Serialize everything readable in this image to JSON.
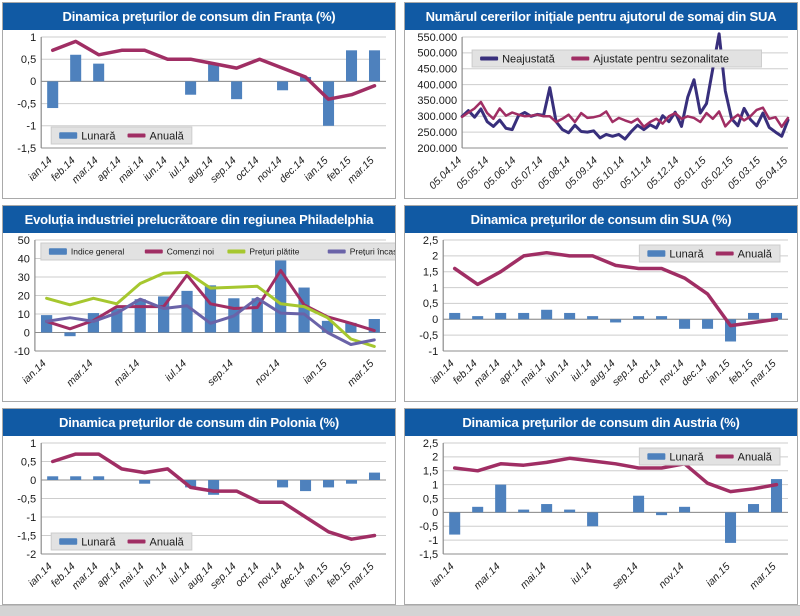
{
  "colors": {
    "title_bar": "#115aa4",
    "bar_blue": "#4e81bd",
    "magenta": "#a02e64",
    "navy": "#382f7c",
    "green": "#a6c72f",
    "slate_purple": "#6a63a8",
    "legend_bg": "#e2e2e2",
    "legend_border": "#cccccc",
    "gridline": "#cdcdcd",
    "axis": "#8c8c8c",
    "tick_text": "#1a1a1a"
  },
  "chart_data": [
    {
      "type": "bar",
      "title": "Dinamica prețurilor de consum din Franța (%)",
      "legend_pos": "bottom-left",
      "x_label_step": 1,
      "y_axis": {
        "min": -1.5,
        "max": 1,
        "ticks": [
          {
            "v": 1,
            "label": "1"
          },
          {
            "v": 0.5,
            "label": "0,5"
          },
          {
            "v": 0,
            "label": "0"
          },
          {
            "v": -0.5,
            "label": "-0,5"
          },
          {
            "v": -1,
            "label": "-1"
          },
          {
            "v": -1.5,
            "label": "-1,5"
          }
        ]
      },
      "categories": [
        "ian.14",
        "feb.14",
        "mar.14",
        "apr.14",
        "mai.14",
        "iun.14",
        "iul.14",
        "aug.14",
        "sep.14",
        "oct.14",
        "nov.14",
        "dec.14",
        "ian.15",
        "feb.15",
        "mar.15"
      ],
      "series": [
        {
          "name": "Lunară",
          "type": "bar",
          "color": "#4e81bd",
          "values": [
            -0.6,
            0.6,
            0.4,
            0,
            0,
            0,
            -0.3,
            0.4,
            -0.4,
            0,
            -0.2,
            0.1,
            -1.0,
            0.7,
            0.7
          ]
        },
        {
          "name": "Anuală",
          "type": "line",
          "color": "#a02e64",
          "width": 3.5,
          "values": [
            0.7,
            0.9,
            0.6,
            0.7,
            0.7,
            0.5,
            0.5,
            0.4,
            0.3,
            0.5,
            0.3,
            0.1,
            -0.4,
            -0.3,
            -0.1
          ]
        }
      ]
    },
    {
      "type": "line",
      "title": "Numărul cererilor inițiale pentru ajutorul de somaj din SUA",
      "legend_pos": "top-left",
      "x_label_step": 1,
      "y_axis": {
        "min": 200000,
        "max": 550000,
        "ticks": [
          {
            "v": 550000,
            "label": "550.000"
          },
          {
            "v": 500000,
            "label": "500.000"
          },
          {
            "v": 450000,
            "label": "450.000"
          },
          {
            "v": 400000,
            "label": "400.000"
          },
          {
            "v": 350000,
            "label": "350.000"
          },
          {
            "v": 300000,
            "label": "300.000"
          },
          {
            "v": 250000,
            "label": "250.000"
          },
          {
            "v": 200000,
            "label": "200.000"
          }
        ]
      },
      "categories": [
        "05.04.14",
        "05.05.14",
        "05.06.14",
        "05.07.14",
        "05.08.14",
        "05.09.14",
        "05.10.14",
        "05.11.14",
        "05.12.14",
        "05.01.15",
        "05.02.15",
        "05.03.15",
        "05.04.15"
      ],
      "series": [
        {
          "name": "Neajustată",
          "type": "line",
          "color": "#382f7c",
          "width": 3,
          "values": [
            300000,
            318000,
            297000,
            323000,
            283000,
            268000,
            288000,
            262000,
            258000,
            302000,
            312000,
            300000,
            306000,
            303000,
            390000,
            283000,
            258000,
            248000,
            272000,
            252000,
            250000,
            254000,
            232000,
            243000,
            237000,
            243000,
            228000,
            252000,
            272000,
            258000,
            273000,
            263000,
            302000,
            283000,
            313000,
            268000,
            360000,
            415000,
            310000,
            340000,
            450000,
            560000,
            380000,
            292000,
            270000,
            325000,
            290000,
            270000,
            310000,
            265000,
            250000,
            237000,
            288000
          ]
        },
        {
          "name": "Ajustate pentru sezonalitate",
          "type": "line",
          "color": "#a02e64",
          "width": 2.5,
          "values": [
            298000,
            312000,
            325000,
            345000,
            310000,
            292000,
            325000,
            302000,
            312000,
            305000,
            300000,
            302000,
            305000,
            300000,
            300000,
            282000,
            292000,
            305000,
            282000,
            310000,
            295000,
            297000,
            302000,
            315000,
            282000,
            295000,
            287000,
            280000,
            292000,
            267000,
            282000,
            292000,
            277000,
            300000,
            310000,
            292000,
            300000,
            295000,
            282000,
            310000,
            292000,
            315000,
            268000,
            290000,
            305000,
            287000,
            300000,
            320000,
            327000,
            292000,
            297000,
            267000,
            295000
          ]
        }
      ]
    },
    {
      "type": "bar",
      "title": "Evoluția industriei prelucrătoare din regiunea Philadelphia",
      "legend_pos": "top",
      "x_label_step": 2,
      "y_axis": {
        "min": -10,
        "max": 50,
        "ticks": [
          {
            "v": 50,
            "label": "50"
          },
          {
            "v": 40,
            "label": "40"
          },
          {
            "v": 30,
            "label": "30"
          },
          {
            "v": 20,
            "label": "20"
          },
          {
            "v": 10,
            "label": "10"
          },
          {
            "v": 0,
            "label": "0"
          },
          {
            "v": -10,
            "label": "-10"
          }
        ]
      },
      "categories": [
        "ian.14",
        "feb.14",
        "mar.14",
        "apr.14",
        "mai.14",
        "iun.14",
        "iul.14",
        "aug.14",
        "sep.14",
        "oct.14",
        "nov.14",
        "dec.14",
        "ian.15",
        "feb.15",
        "mar.15"
      ],
      "series": [
        {
          "name": "Indice general",
          "type": "bar",
          "color": "#4e81bd",
          "values": [
            9.4,
            -2,
            10.5,
            13,
            18,
            19.5,
            22.5,
            25.5,
            18.5,
            18.5,
            40.5,
            24.3,
            6.3,
            5.2,
            7.3
          ]
        },
        {
          "name": "Comenzi noi",
          "type": "line",
          "color": "#a02e64",
          "width": 3,
          "values": [
            6,
            2,
            6.5,
            14,
            14,
            14,
            31,
            15.5,
            13,
            13.5,
            33.5,
            15,
            8.5,
            5,
            1
          ]
        },
        {
          "name": "Prețuri plătite",
          "type": "line",
          "color": "#a6c72f",
          "width": 3,
          "values": [
            18.5,
            15,
            18.5,
            15.5,
            26.5,
            32,
            32.5,
            24,
            24.5,
            25,
            15.5,
            14,
            8,
            -3.5,
            -7.5
          ]
        },
        {
          "name": "Prețuri încasate",
          "type": "line",
          "color": "#6a63a8",
          "width": 3,
          "values": [
            6,
            8,
            6,
            10.5,
            18,
            13,
            14.5,
            5,
            9,
            18.5,
            10.5,
            10,
            0,
            -6.5,
            -4
          ]
        }
      ]
    },
    {
      "type": "bar",
      "title": "Dinamica prețurilor de consum din SUA (%)",
      "legend_pos": "top-right",
      "x_label_step": 1,
      "y_axis": {
        "min": -1,
        "max": 2.5,
        "ticks": [
          {
            "v": 2.5,
            "label": "2,5"
          },
          {
            "v": 2,
            "label": "2"
          },
          {
            "v": 1.5,
            "label": "1,5"
          },
          {
            "v": 1,
            "label": "1"
          },
          {
            "v": 0.5,
            "label": "0,5"
          },
          {
            "v": 0,
            "label": "0"
          },
          {
            "v": -0.5,
            "label": "-0,5"
          },
          {
            "v": -1,
            "label": "-1"
          }
        ]
      },
      "categories": [
        "ian.14",
        "feb.14",
        "mar.14",
        "apr.14",
        "mai.14",
        "iun.14",
        "iul.14",
        "aug.14",
        "sep.14",
        "oct.14",
        "nov.14",
        "dec.14",
        "ian.15",
        "feb.15",
        "mar.15"
      ],
      "series": [
        {
          "name": "Lunară",
          "type": "bar",
          "color": "#4e81bd",
          "values": [
            0.2,
            0.1,
            0.2,
            0.2,
            0.3,
            0.2,
            0.1,
            -0.1,
            0.1,
            0.1,
            -0.3,
            -0.3,
            -0.7,
            0.2,
            0.2
          ]
        },
        {
          "name": "Anuală",
          "type": "line",
          "color": "#a02e64",
          "width": 3.5,
          "values": [
            1.6,
            1.1,
            1.5,
            2.0,
            2.1,
            2.0,
            2.0,
            1.7,
            1.6,
            1.6,
            1.3,
            0.8,
            -0.2,
            -0.1,
            0
          ]
        }
      ]
    },
    {
      "type": "bar",
      "title": "Dinamica prețurilor de consum din Polonia (%)",
      "legend_pos": "bottom-left",
      "x_label_step": 1,
      "y_axis": {
        "min": -2,
        "max": 1,
        "ticks": [
          {
            "v": 1,
            "label": "1"
          },
          {
            "v": 0.5,
            "label": "0,5"
          },
          {
            "v": 0,
            "label": "0"
          },
          {
            "v": -0.5,
            "label": "-0,5"
          },
          {
            "v": -1,
            "label": "-1"
          },
          {
            "v": -1.5,
            "label": "-1,5"
          },
          {
            "v": -2,
            "label": "-2"
          }
        ]
      },
      "categories": [
        "ian.14",
        "feb.14",
        "mar.14",
        "apr.14",
        "mai.14",
        "iun.14",
        "iul.14",
        "aug.14",
        "sep.14",
        "oct.14",
        "nov.14",
        "dec.14",
        "ian.15",
        "feb.15",
        "mar.15"
      ],
      "series": [
        {
          "name": "Lunară",
          "type": "bar",
          "color": "#4e81bd",
          "values": [
            0.1,
            0.1,
            0.1,
            0,
            -0.1,
            0,
            -0.2,
            -0.4,
            0,
            0,
            -0.2,
            -0.3,
            -0.2,
            -0.1,
            0.2
          ]
        },
        {
          "name": "Anuală",
          "type": "line",
          "color": "#a02e64",
          "width": 3.5,
          "values": [
            0.5,
            0.7,
            0.7,
            0.3,
            0.2,
            0.3,
            -0.2,
            -0.3,
            -0.3,
            -0.6,
            -0.6,
            -1.0,
            -1.4,
            -1.6,
            -1.5
          ]
        }
      ]
    },
    {
      "type": "bar",
      "title": "Dinamica prețurilor de consum din Austria (%)",
      "legend_pos": "top-right",
      "x_label_step": 2,
      "y_axis": {
        "min": -1.5,
        "max": 2.5,
        "ticks": [
          {
            "v": 2.5,
            "label": "2,5"
          },
          {
            "v": 2,
            "label": "2"
          },
          {
            "v": 1.5,
            "label": "1,5"
          },
          {
            "v": 1,
            "label": "1"
          },
          {
            "v": 0.5,
            "label": "0,5"
          },
          {
            "v": 0,
            "label": "0"
          },
          {
            "v": -0.5,
            "label": "-0,5"
          },
          {
            "v": -1,
            "label": "-1"
          },
          {
            "v": -1.5,
            "label": "-1,5"
          }
        ]
      },
      "categories": [
        "ian.14",
        "feb.14",
        "mar.14",
        "apr.14",
        "mai.14",
        "iun.14",
        "iul.14",
        "aug.14",
        "sep.14",
        "oct.14",
        "nov.14",
        "dec.14",
        "ian.15",
        "feb.15",
        "mar.15"
      ],
      "series": [
        {
          "name": "Lunară",
          "type": "bar",
          "color": "#4e81bd",
          "values": [
            -0.8,
            0.2,
            1.0,
            0.1,
            0.3,
            0.1,
            -0.5,
            0,
            0.6,
            -0.1,
            0.2,
            0,
            -1.1,
            0.3,
            1.2
          ]
        },
        {
          "name": "Anuală",
          "type": "line",
          "color": "#a02e64",
          "width": 3.5,
          "values": [
            1.6,
            1.5,
            1.75,
            1.7,
            1.8,
            1.95,
            1.85,
            1.75,
            1.6,
            1.6,
            1.75,
            1.05,
            0.75,
            0.85,
            1.0
          ]
        }
      ]
    }
  ]
}
